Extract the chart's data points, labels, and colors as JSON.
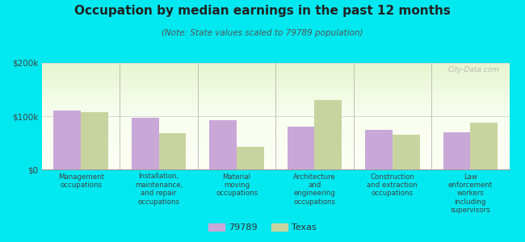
{
  "title": "Occupation by median earnings in the past 12 months",
  "subtitle": "(Note: State values scaled to 79789 population)",
  "categories": [
    "Management\noccupations",
    "Installation,\nmaintenance,\nand repair\noccupations",
    "Material\nmoving\noccupations",
    "Architecture\nand\nengineering\noccupations",
    "Construction\nand extraction\noccupations",
    "Law\nenforcement\nworkers\nincluding\nsupervisors"
  ],
  "values_79789": [
    110000,
    97000,
    93000,
    80000,
    75000,
    70000
  ],
  "values_texas": [
    108000,
    68000,
    42000,
    130000,
    65000,
    88000
  ],
  "color_79789": "#c9a8d8",
  "color_texas": "#c8d4a0",
  "background_color": "#00e8f0",
  "ylim": [
    0,
    200000
  ],
  "yticks": [
    0,
    100000,
    200000
  ],
  "ytick_labels": [
    "$0",
    "$100k",
    "$200k"
  ],
  "bar_width": 0.35,
  "legend_label_79789": "79789",
  "legend_label_texas": "Texas",
  "watermark": "City-Data.com"
}
